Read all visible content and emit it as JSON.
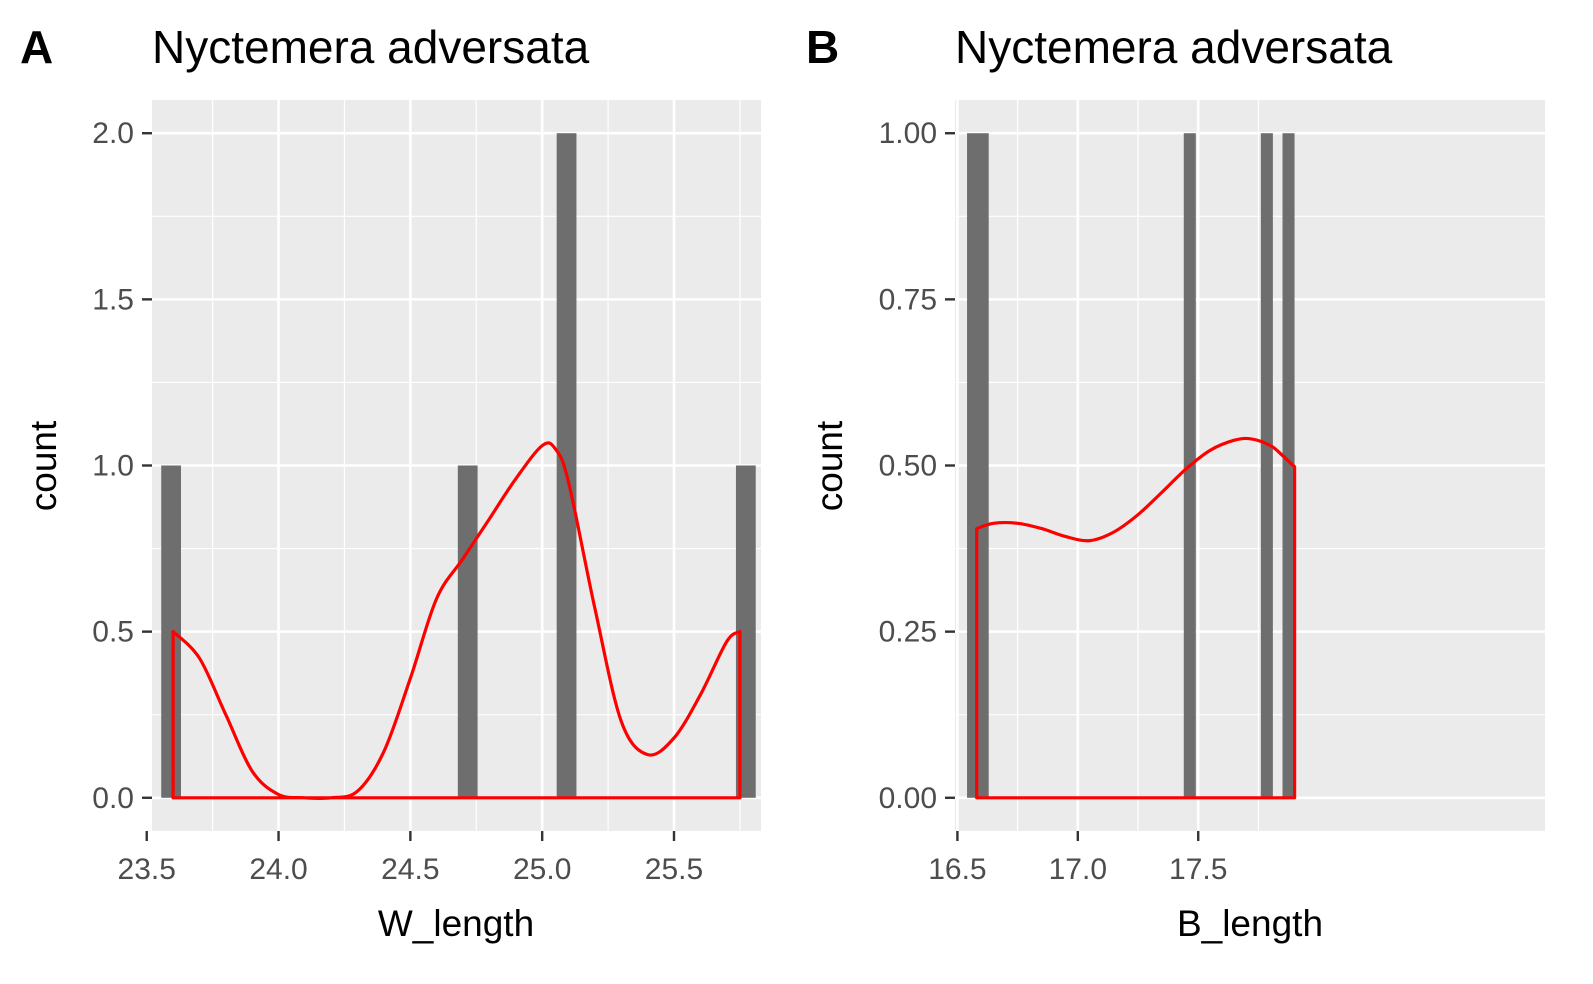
{
  "chart_data": [
    {
      "type": "bar",
      "panel_tag": "A",
      "title": "Nyctemera adversata",
      "xlabel": "W_length",
      "ylabel": "count",
      "xlim": [
        23.52,
        25.83
      ],
      "ylim": [
        -0.1,
        2.1
      ],
      "xticks": [
        {
          "value": 23.5,
          "label": "23.5"
        },
        {
          "value": 24.0,
          "label": "24.0"
        },
        {
          "value": 24.5,
          "label": "24.5"
        },
        {
          "value": 25.0,
          "label": "25.0"
        },
        {
          "value": 25.5,
          "label": "25.5"
        }
      ],
      "yticks": [
        {
          "value": 0,
          "label": "0.0"
        },
        {
          "value": 0.5,
          "label": "0.5"
        },
        {
          "value": 1.0,
          "label": "1.0"
        },
        {
          "value": 1.5,
          "label": "1.5"
        },
        {
          "value": 2.0,
          "label": "2.0"
        }
      ],
      "grid": true,
      "bars": [
        {
          "x0": 23.555,
          "x1": 23.63,
          "count": 1
        },
        {
          "x0": 24.68,
          "x1": 24.755,
          "count": 1
        },
        {
          "x0": 25.055,
          "x1": 25.13,
          "count": 2
        },
        {
          "x0": 25.735,
          "x1": 25.81,
          "count": 1
        }
      ],
      "density": {
        "color": "#ff0000",
        "x": [
          23.6,
          23.7,
          23.8,
          23.9,
          24.0,
          24.1,
          24.2,
          24.3,
          24.4,
          24.5,
          24.6,
          24.7,
          24.8,
          24.9,
          25.0,
          25.05,
          25.1,
          25.2,
          25.3,
          25.4,
          25.5,
          25.6,
          25.7,
          25.75
        ],
        "y": [
          0.5,
          0.42,
          0.25,
          0.08,
          0.01,
          0.0,
          0.0,
          0.02,
          0.14,
          0.36,
          0.6,
          0.72,
          0.84,
          0.96,
          1.06,
          1.05,
          0.95,
          0.57,
          0.23,
          0.13,
          0.18,
          0.31,
          0.47,
          0.5
        ]
      }
    },
    {
      "type": "bar",
      "panel_tag": "B",
      "title": "Nyctemera adversata",
      "xlabel": "B_length",
      "ylabel": "count",
      "xlim": [
        16.49,
        18.94
      ],
      "ylim": [
        -0.05,
        1.05
      ],
      "xticks": [
        {
          "value": 16.5,
          "label": "16.5"
        },
        {
          "value": 17.0,
          "label": "17.0"
        },
        {
          "value": 17.5,
          "label": "17.5"
        }
      ],
      "yticks": [
        {
          "value": 0,
          "label": "0.00"
        },
        {
          "value": 0.25,
          "label": "0.25"
        },
        {
          "value": 0.5,
          "label": "0.50"
        },
        {
          "value": 0.75,
          "label": "0.75"
        },
        {
          "value": 1.0,
          "label": "1.00"
        }
      ],
      "grid": true,
      "bars": [
        {
          "x0": 16.54,
          "x1": 16.63,
          "count": 1
        },
        {
          "x0": 17.44,
          "x1": 17.49,
          "count": 1
        },
        {
          "x0": 17.76,
          "x1": 17.81,
          "count": 1
        },
        {
          "x0": 17.85,
          "x1": 17.9,
          "count": 1
        }
      ],
      "density": {
        "color": "#ff0000",
        "x": [
          16.58,
          16.65,
          16.75,
          16.85,
          16.95,
          17.05,
          17.15,
          17.25,
          17.35,
          17.45,
          17.55,
          17.65,
          17.72,
          17.8,
          17.85,
          17.9
        ],
        "y": [
          0.405,
          0.413,
          0.413,
          0.405,
          0.393,
          0.387,
          0.4,
          0.426,
          0.46,
          0.495,
          0.523,
          0.538,
          0.54,
          0.53,
          0.515,
          0.498
        ]
      }
    }
  ]
}
